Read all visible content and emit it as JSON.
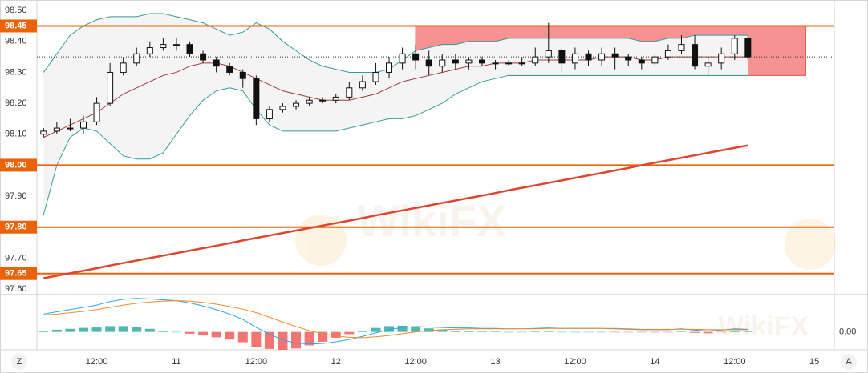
{
  "chart_data": {
    "type": "candlestick",
    "xlim": [
      -21,
      99
    ],
    "xticks": [
      {
        "value": -12,
        "label": "12:00"
      },
      {
        "value": 0,
        "label": "11"
      },
      {
        "value": 12,
        "label": "12:00"
      },
      {
        "value": 24,
        "label": "12"
      },
      {
        "value": 36,
        "label": "12:00"
      },
      {
        "value": 48,
        "label": "13"
      },
      {
        "value": 60,
        "label": "12:00"
      },
      {
        "value": 72,
        "label": "14"
      },
      {
        "value": 84,
        "label": "12:00"
      },
      {
        "value": 96,
        "label": "15"
      }
    ],
    "ylim": [
      97.582,
      98.534
    ],
    "yticks": [
      {
        "value": 98.5,
        "label": "98.50"
      },
      {
        "value": 98.4,
        "label": "98.40"
      },
      {
        "value": 98.3,
        "label": "98.30"
      },
      {
        "value": 98.2,
        "label": "98.20"
      },
      {
        "value": 98.1,
        "label": "98.10"
      },
      {
        "value": 97.9,
        "label": "97.90"
      },
      {
        "value": 97.7,
        "label": "97.70"
      },
      {
        "value": 97.6,
        "label": "97.60"
      }
    ],
    "hlines": [
      {
        "value": 98.45,
        "label": "98.45"
      },
      {
        "value": 98.0,
        "label": "98.00"
      },
      {
        "value": 97.8,
        "label": "97.80"
      },
      {
        "value": 97.65,
        "label": "97.65"
      }
    ],
    "hline_color": "#e8630a",
    "price_line": 98.35,
    "zone": {
      "x": [
        36,
        94.7
      ],
      "y": [
        98.29,
        98.45
      ],
      "color": "#f26d6d"
    },
    "x": [
      -20,
      -18,
      -16,
      -14,
      -12,
      -10,
      -8,
      -6,
      -4,
      -2,
      0,
      2,
      4,
      6,
      8,
      10,
      12,
      14,
      16,
      18,
      20,
      22,
      24,
      26,
      28,
      30,
      32,
      34,
      36,
      38,
      40,
      42,
      44,
      46,
      48,
      50,
      52,
      54,
      56,
      58,
      60,
      62,
      64,
      66,
      68,
      70,
      72,
      74,
      76,
      78,
      80,
      82,
      84,
      86
    ],
    "open": [
      98.1,
      98.11,
      98.12,
      98.12,
      98.14,
      98.2,
      98.3,
      98.33,
      98.36,
      98.38,
      98.39,
      98.39,
      98.36,
      98.34,
      98.32,
      98.3,
      98.28,
      98.15,
      98.18,
      98.19,
      98.2,
      98.21,
      98.21,
      98.22,
      98.25,
      98.27,
      98.3,
      98.33,
      98.36,
      98.34,
      98.32,
      98.34,
      98.33,
      98.34,
      98.33,
      98.33,
      98.33,
      98.33,
      98.35,
      98.37,
      98.33,
      98.36,
      98.34,
      98.36,
      98.35,
      98.34,
      98.33,
      98.35,
      98.37,
      98.39,
      98.32,
      98.33,
      98.36,
      98.41
    ],
    "high": [
      98.12,
      98.14,
      98.15,
      98.16,
      98.22,
      98.33,
      98.35,
      98.38,
      98.4,
      98.41,
      98.41,
      98.4,
      98.37,
      98.35,
      98.33,
      98.31,
      98.29,
      98.19,
      98.2,
      98.21,
      98.22,
      98.22,
      98.23,
      98.27,
      98.29,
      98.33,
      98.35,
      98.38,
      98.39,
      98.37,
      98.36,
      98.36,
      98.35,
      98.35,
      98.34,
      98.34,
      98.35,
      98.38,
      98.46,
      98.38,
      98.38,
      98.37,
      98.38,
      98.38,
      98.36,
      98.35,
      98.36,
      98.39,
      98.42,
      98.42,
      98.35,
      98.38,
      98.42,
      98.42
    ],
    "low": [
      98.09,
      98.1,
      98.11,
      98.1,
      98.13,
      98.19,
      98.29,
      98.32,
      98.35,
      98.37,
      98.37,
      98.35,
      98.33,
      98.3,
      98.29,
      98.25,
      98.13,
      98.14,
      98.17,
      98.18,
      98.19,
      98.2,
      98.2,
      98.21,
      98.24,
      98.26,
      98.28,
      98.31,
      98.31,
      98.29,
      98.3,
      98.31,
      98.31,
      98.32,
      98.31,
      98.32,
      98.32,
      98.32,
      98.33,
      98.3,
      98.31,
      98.32,
      98.32,
      98.31,
      98.32,
      98.31,
      98.32,
      98.34,
      98.36,
      98.31,
      98.29,
      98.31,
      98.34,
      98.34
    ],
    "close": [
      98.11,
      98.12,
      98.12,
      98.14,
      98.2,
      98.3,
      98.33,
      98.36,
      98.38,
      98.39,
      98.39,
      98.36,
      98.34,
      98.32,
      98.3,
      98.28,
      98.15,
      98.18,
      98.19,
      98.2,
      98.21,
      98.21,
      98.22,
      98.25,
      98.27,
      98.3,
      98.33,
      98.36,
      98.34,
      98.32,
      98.34,
      98.33,
      98.34,
      98.33,
      98.33,
      98.33,
      98.33,
      98.35,
      98.37,
      98.33,
      98.36,
      98.34,
      98.36,
      98.35,
      98.34,
      98.33,
      98.35,
      98.37,
      98.39,
      98.32,
      98.33,
      98.36,
      98.41,
      98.35
    ],
    "bollinger": {
      "color": "#3a9a9a",
      "mid_color": "#a33a3a",
      "fill": "#f4f4f4",
      "upper": [
        98.3,
        98.36,
        98.42,
        98.45,
        98.47,
        98.48,
        98.48,
        98.48,
        98.49,
        98.49,
        98.48,
        98.47,
        98.46,
        98.44,
        98.42,
        98.43,
        98.46,
        98.44,
        98.4,
        98.37,
        98.34,
        98.32,
        98.31,
        98.3,
        98.3,
        98.3,
        98.31,
        98.34,
        98.37,
        98.38,
        98.39,
        98.39,
        98.4,
        98.4,
        98.4,
        98.41,
        98.41,
        98.41,
        98.41,
        98.41,
        98.41,
        98.41,
        98.41,
        98.41,
        98.41,
        98.4,
        98.4,
        98.41,
        98.41,
        98.42,
        98.42,
        98.42,
        98.42,
        98.42
      ],
      "middle": [
        98.09,
        98.11,
        98.13,
        98.15,
        98.17,
        98.2,
        98.23,
        98.25,
        98.27,
        98.29,
        98.3,
        98.32,
        98.33,
        98.33,
        98.32,
        98.3,
        98.28,
        98.26,
        98.24,
        98.23,
        98.22,
        98.21,
        98.21,
        98.21,
        98.22,
        98.23,
        98.25,
        98.27,
        98.28,
        98.29,
        98.3,
        98.31,
        98.32,
        98.32,
        98.33,
        98.33,
        98.33,
        98.34,
        98.34,
        98.34,
        98.34,
        98.34,
        98.35,
        98.35,
        98.35,
        98.34,
        98.34,
        98.35,
        98.35,
        98.35,
        98.35,
        98.35,
        98.35,
        98.35
      ],
      "lower": [
        97.84,
        98.0,
        98.09,
        98.12,
        98.11,
        98.07,
        98.03,
        98.02,
        98.02,
        98.04,
        98.1,
        98.16,
        98.21,
        98.24,
        98.25,
        98.24,
        98.18,
        98.13,
        98.11,
        98.11,
        98.11,
        98.11,
        98.11,
        98.12,
        98.13,
        98.14,
        98.15,
        98.15,
        98.16,
        98.18,
        98.2,
        98.23,
        98.25,
        98.27,
        98.28,
        98.29,
        98.29,
        98.29,
        98.29,
        98.29,
        98.29,
        98.29,
        98.29,
        98.29,
        98.29,
        98.29,
        98.29,
        98.29,
        98.29,
        98.29,
        98.29,
        98.29,
        98.29,
        98.29
      ]
    },
    "ma": {
      "color": "#e0442e",
      "values": [
        97.635,
        97.643,
        97.651,
        97.659,
        97.667,
        97.676,
        97.684,
        97.692,
        97.7,
        97.708,
        97.716,
        97.724,
        97.732,
        97.74,
        97.748,
        97.757,
        97.765,
        97.773,
        97.781,
        97.789,
        97.797,
        97.805,
        97.813,
        97.821,
        97.829,
        97.838,
        97.846,
        97.854,
        97.862,
        97.87,
        97.878,
        97.886,
        97.894,
        97.902,
        97.91,
        97.919,
        97.927,
        97.935,
        97.943,
        97.951,
        97.959,
        97.967,
        97.975,
        97.983,
        97.991,
        98.0,
        98.008,
        98.016,
        98.024,
        98.032,
        98.04,
        98.048,
        98.056,
        98.064
      ]
    },
    "macd": {
      "ylim": [
        -0.04,
        0.08
      ],
      "yticks": [
        {
          "value": 0,
          "label": "0.00"
        }
      ],
      "line_color": "#2fa4e7",
      "signal_color": "#f08a2a",
      "up_color": "#26a69a",
      "down_color": "#ef5350",
      "line": [
        0.04,
        0.045,
        0.05,
        0.055,
        0.06,
        0.068,
        0.073,
        0.075,
        0.074,
        0.072,
        0.07,
        0.065,
        0.058,
        0.05,
        0.04,
        0.028,
        0.01,
        -0.005,
        -0.018,
        -0.025,
        -0.027,
        -0.026,
        -0.022,
        -0.017,
        -0.01,
        -0.002,
        0.005,
        0.01,
        0.012,
        0.011,
        0.01,
        0.009,
        0.009,
        0.008,
        0.008,
        0.007,
        0.007,
        0.008,
        0.009,
        0.008,
        0.008,
        0.008,
        0.008,
        0.007,
        0.006,
        0.005,
        0.005,
        0.005,
        0.007,
        0.004,
        0.002,
        0.004,
        0.007,
        0.006
      ],
      "signal": [
        0.038,
        0.04,
        0.043,
        0.046,
        0.05,
        0.055,
        0.06,
        0.064,
        0.067,
        0.069,
        0.07,
        0.069,
        0.066,
        0.062,
        0.057,
        0.051,
        0.043,
        0.033,
        0.022,
        0.012,
        0.003,
        -0.004,
        -0.009,
        -0.012,
        -0.013,
        -0.011,
        -0.008,
        -0.004,
        0,
        0.003,
        0.005,
        0.006,
        0.007,
        0.007,
        0.007,
        0.007,
        0.007,
        0.007,
        0.008,
        0.008,
        0.008,
        0.008,
        0.008,
        0.008,
        0.007,
        0.006,
        0.006,
        0.006,
        0.006,
        0.006,
        0.005,
        0.005,
        0.005,
        0.005
      ],
      "histogram": [
        0.002,
        0.005,
        0.007,
        0.009,
        0.01,
        0.013,
        0.013,
        0.011,
        0.007,
        0.003,
        0,
        -0.004,
        -0.008,
        -0.012,
        -0.017,
        -0.023,
        -0.033,
        -0.038,
        -0.04,
        -0.037,
        -0.03,
        -0.022,
        -0.013,
        -0.005,
        0.003,
        0.009,
        0.013,
        0.014,
        0.012,
        0.008,
        0.005,
        0.003,
        0.002,
        0.001,
        0.001,
        0,
        0,
        0.001,
        0.001,
        0,
        0,
        0,
        0,
        -0.001,
        -0.001,
        -0.001,
        -0.001,
        -0.001,
        0.001,
        -0.002,
        -0.003,
        -0.001,
        0.002,
        0.001
      ]
    },
    "watermark": "WikiFX"
  },
  "controls": {
    "left": "Z",
    "right": "A"
  }
}
